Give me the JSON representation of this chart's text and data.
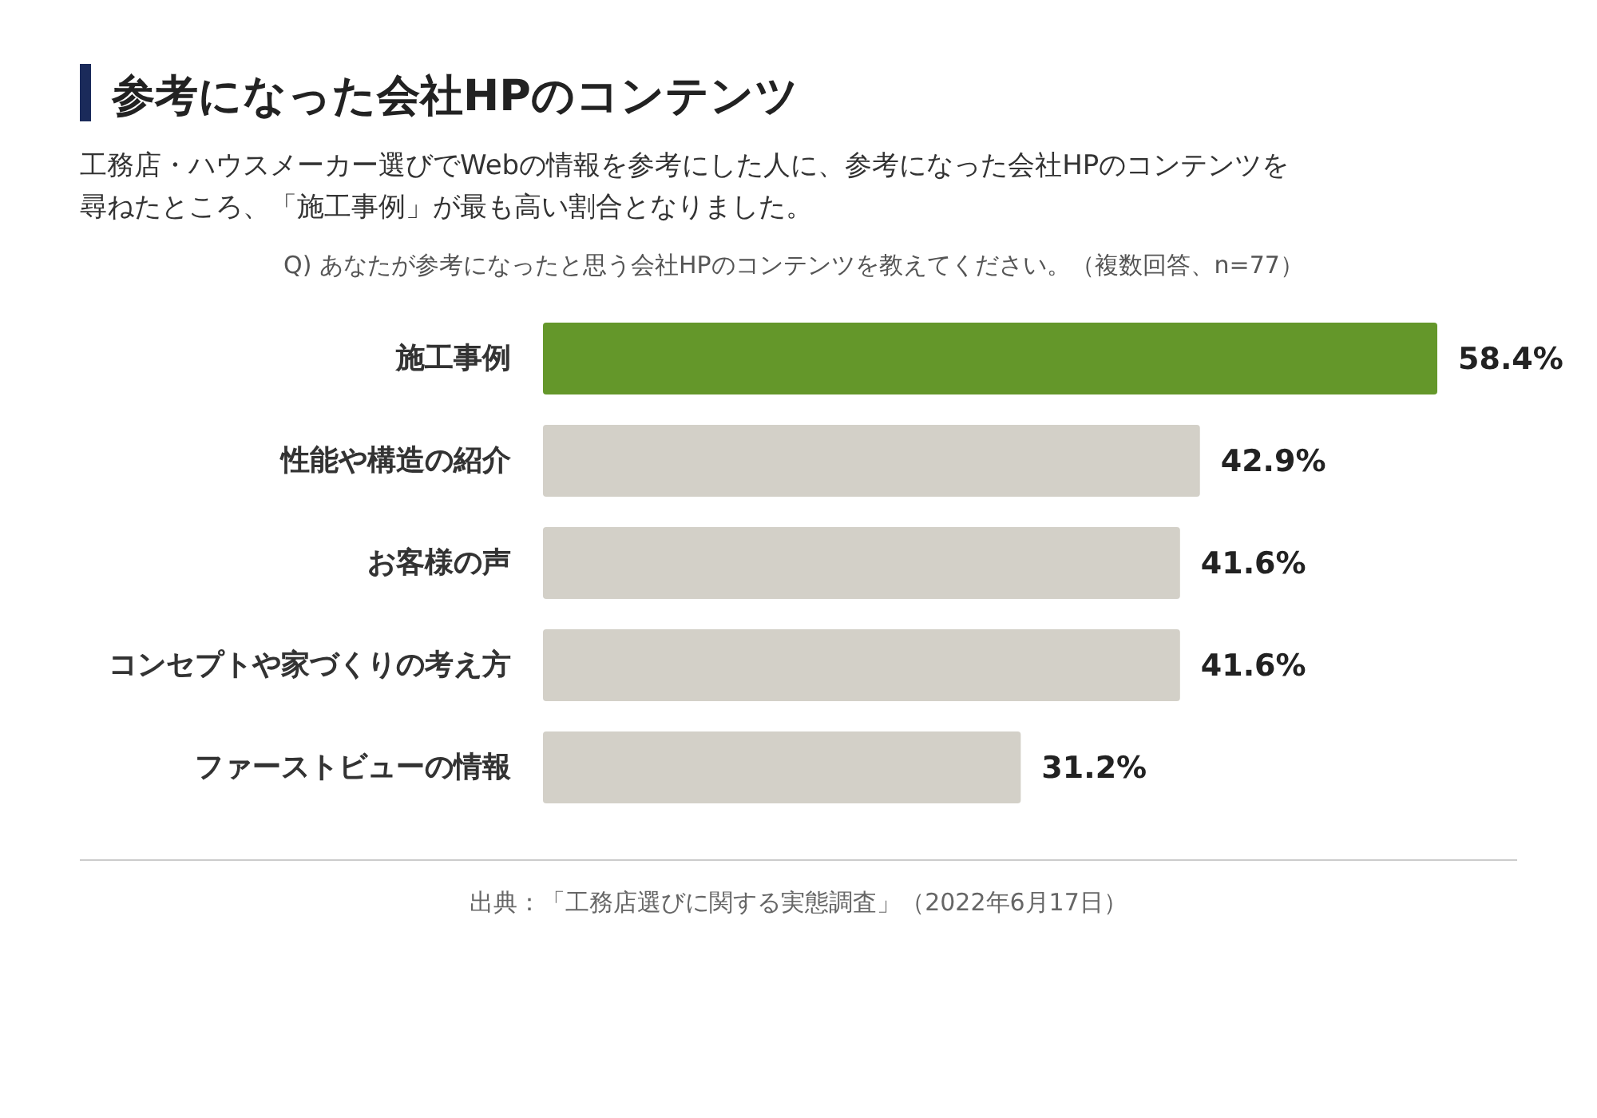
{
  "chart_data": {
    "type": "bar",
    "orientation": "horizontal",
    "title": "参考になった会社HPのコンテンツ",
    "subtitle": "工務店・ハウスメーカー選びでWebの情報を参考にした人に、参考になった会社HPのコンテンツを尋ねたところ、「施工事例」が最も高い割合となりました。",
    "annotations": [
      "Q) あなたが参考になったと思う会社HPのコンテンツを教えてください。（複数回答、n=77）",
      "出典：「工務店選びに関する実態調査」（2022年6月17日）"
    ],
    "categories": [
      "施工事例",
      "性能や構造の紹介",
      "お客様の声",
      "コンセプトや家づくりの考え方",
      "ファーストビューの情報"
    ],
    "values": [
      58.4,
      42.9,
      41.6,
      41.6,
      31.2
    ],
    "colors": [
      "#64972a",
      "#d3d0c8",
      "#d3d0c8",
      "#d3d0c8",
      "#d3d0c8"
    ],
    "value_labels": [
      "58.4%",
      "42.9%",
      "41.6%",
      "41.6%",
      "31.2%"
    ]
  }
}
